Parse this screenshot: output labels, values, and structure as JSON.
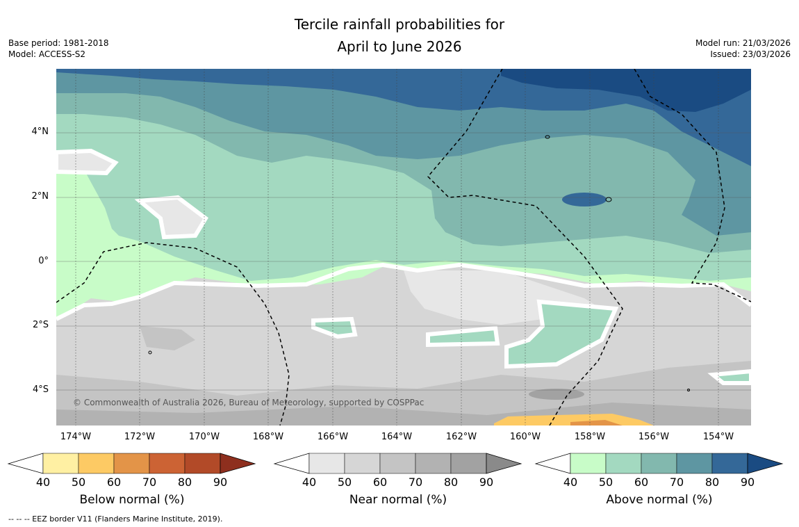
{
  "title": {
    "line1": "Tercile rainfall probabilities for",
    "line2": "April to June 2026"
  },
  "meta_left": {
    "base_period": "Base period: 1981-2018",
    "model": "Model: ACCESS-S2"
  },
  "meta_right": {
    "model_run": "Model run: 21/03/2026",
    "issued": "Issued: 23/03/2026"
  },
  "map": {
    "lon_ticks": [
      "174°W",
      "172°W",
      "170°W",
      "168°W",
      "166°W",
      "164°W",
      "162°W",
      "160°W",
      "158°W",
      "156°W",
      "154°W"
    ],
    "lat_ticks": [
      "4°N",
      "2°N",
      "0°",
      "2°S",
      "4°S"
    ],
    "copyright": "© Commonwealth of Australia 2026, Bureau of Meteorology, supported by COSPPac"
  },
  "legends": [
    {
      "label": "Below normal (%)",
      "ticks": [
        "40",
        "50",
        "60",
        "70",
        "80",
        "90"
      ],
      "colors": [
        "#fff0a3",
        "#fdca64",
        "#e39448",
        "#cc6334",
        "#b24a28",
        "#8e2f1e"
      ]
    },
    {
      "label": "Near normal (%)",
      "ticks": [
        "40",
        "50",
        "60",
        "70",
        "80",
        "90"
      ],
      "colors": [
        "#e7e7e7",
        "#d6d6d6",
        "#c4c4c4",
        "#b2b2b2",
        "#a2a2a2",
        "#8a8a8a"
      ]
    },
    {
      "label": "Above normal (%)",
      "ticks": [
        "40",
        "50",
        "60",
        "70",
        "80",
        "90"
      ],
      "colors": [
        "#c8fcc8",
        "#a3d9c0",
        "#82b8ae",
        "#5e96a2",
        "#346898",
        "#1a4b82"
      ]
    }
  ],
  "footnote": "--  --  -- EEZ border V11 (Flanders Marine Institute, 2019)."
}
